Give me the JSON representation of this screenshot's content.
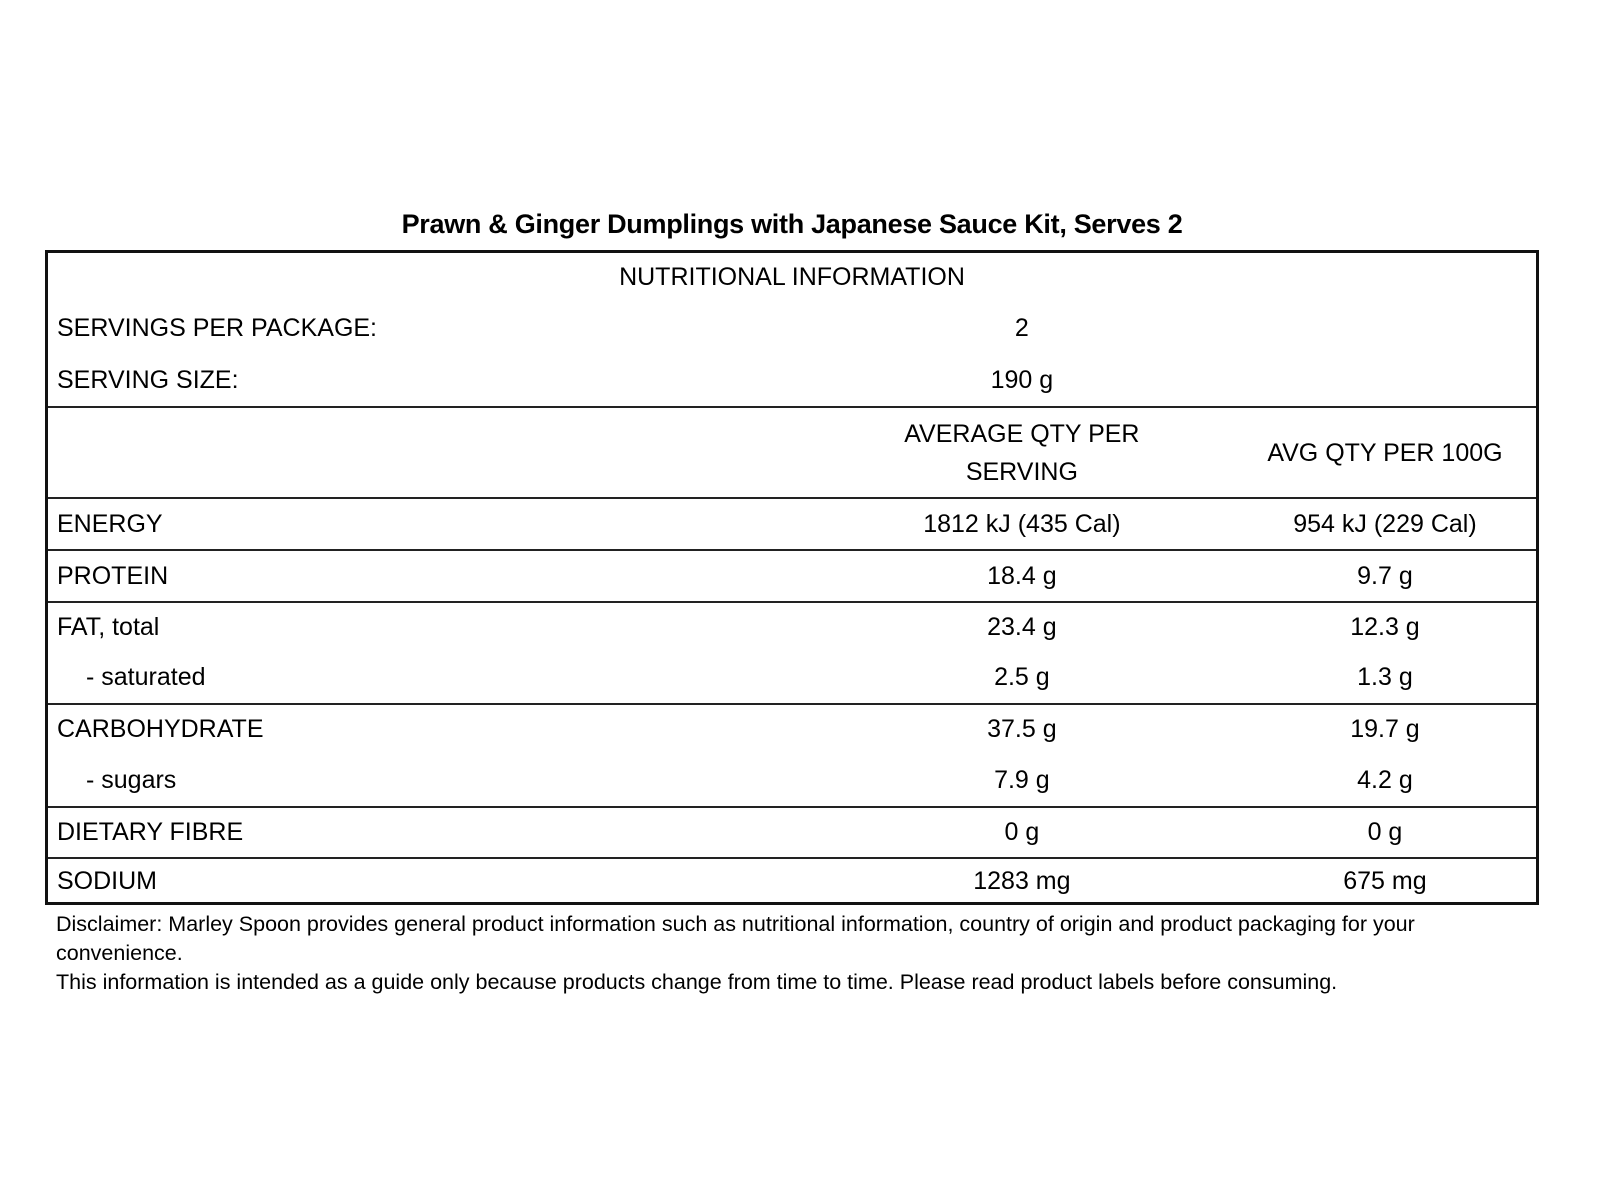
{
  "page": {
    "background_color": "#ffffff",
    "text_color": "#000000",
    "border_color": "#111111"
  },
  "title": "Prawn & Ginger Dumplings with Japanese Sauce Kit, Serves 2",
  "table": {
    "header": "NUTRITIONAL INFORMATION",
    "meta_rows": [
      {
        "label": "SERVINGS PER PACKAGE:",
        "value": "2"
      },
      {
        "label": "SERVING SIZE:",
        "value": "190 g"
      }
    ],
    "columns": {
      "per_serving": "AVERAGE QTY PER SERVING",
      "per_100g": "AVG QTY PER 100G"
    },
    "rows": [
      {
        "label": "ENERGY",
        "per_serving": "1812 kJ (435 Cal)",
        "per_100g": "954 kJ (229 Cal)"
      },
      {
        "label": "PROTEIN",
        "per_serving": "18.4 g",
        "per_100g": "9.7 g"
      },
      {
        "label": "FAT, total",
        "per_serving": "23.4 g",
        "per_100g": "12.3 g"
      },
      {
        "label": "- saturated",
        "per_serving": "2.5 g",
        "per_100g": "1.3 g"
      },
      {
        "label": "CARBOHYDRATE",
        "per_serving": "37.5 g",
        "per_100g": "19.7 g"
      },
      {
        "label": "- sugars",
        "per_serving": "7.9 g",
        "per_100g": "4.2 g"
      },
      {
        "label": "DIETARY FIBRE",
        "per_serving": "0 g",
        "per_100g": "0 g"
      },
      {
        "label": "SODIUM",
        "per_serving": "1283 mg",
        "per_100g": "675 mg"
      }
    ]
  },
  "disclaimer": {
    "line1": "Disclaimer: Marley Spoon provides general product information such as nutritional information, country of origin and product packaging for your convenience.",
    "line2": "This information is intended as a guide only because products change from time to time. Please read product labels before consuming."
  }
}
